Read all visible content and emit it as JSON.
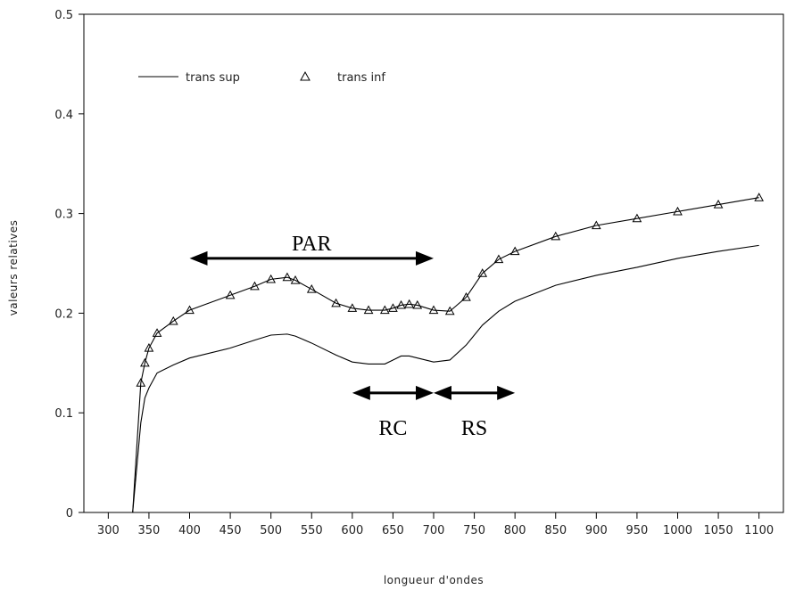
{
  "chart_data": {
    "type": "line",
    "xlabel": "longueur d'ondes",
    "ylabel": "valeurs relatives",
    "xlim": [
      270,
      1130
    ],
    "ylim": [
      0,
      0.5
    ],
    "x_ticks": [
      300,
      350,
      400,
      450,
      500,
      550,
      600,
      650,
      700,
      750,
      800,
      850,
      900,
      950,
      1000,
      1050,
      1100
    ],
    "y_ticks": [
      0,
      0.1,
      0.2,
      0.3,
      0.4,
      0.5
    ],
    "y_tick_labels": [
      "0",
      "0.1",
      "0.2",
      "0.3",
      "0.4",
      "0.5"
    ],
    "grid": false,
    "legend_position": "top-left",
    "series": [
      {
        "name": "trans sup",
        "marker": "none",
        "color": "#000000",
        "x": [
          330,
          340,
          345,
          350,
          360,
          380,
          400,
          450,
          480,
          500,
          520,
          530,
          550,
          580,
          600,
          620,
          640,
          650,
          660,
          670,
          680,
          700,
          720,
          740,
          760,
          780,
          800,
          850,
          900,
          950,
          1000,
          1050,
          1100
        ],
        "y": [
          0.0,
          0.09,
          0.115,
          0.125,
          0.14,
          0.148,
          0.155,
          0.165,
          0.173,
          0.178,
          0.179,
          0.177,
          0.17,
          0.158,
          0.151,
          0.149,
          0.149,
          0.153,
          0.157,
          0.157,
          0.155,
          0.151,
          0.153,
          0.168,
          0.188,
          0.202,
          0.212,
          0.228,
          0.238,
          0.246,
          0.255,
          0.262,
          0.268
        ]
      },
      {
        "name": "trans inf",
        "marker": "triangle",
        "color": "#000000",
        "x": [
          330,
          340,
          345,
          350,
          360,
          380,
          400,
          450,
          480,
          500,
          520,
          530,
          550,
          580,
          600,
          620,
          640,
          650,
          660,
          670,
          680,
          700,
          720,
          740,
          760,
          780,
          800,
          850,
          900,
          950,
          1000,
          1050,
          1100
        ],
        "y": [
          0.0,
          0.13,
          0.15,
          0.165,
          0.18,
          0.192,
          0.203,
          0.218,
          0.227,
          0.234,
          0.236,
          0.233,
          0.224,
          0.21,
          0.205,
          0.203,
          0.203,
          0.205,
          0.208,
          0.209,
          0.208,
          0.203,
          0.202,
          0.216,
          0.24,
          0.254,
          0.262,
          0.277,
          0.288,
          0.295,
          0.302,
          0.309,
          0.316
        ]
      }
    ],
    "annotations": [
      {
        "label": "PAR",
        "x_start": 400,
        "x_end": 700,
        "y": 0.255,
        "label_y": 0.27
      },
      {
        "label": "RC",
        "x_start": 600,
        "x_end": 700,
        "y": 0.12,
        "label_y": 0.085
      },
      {
        "label": "RS",
        "x_start": 700,
        "x_end": 800,
        "y": 0.12,
        "label_y": 0.085
      }
    ]
  }
}
